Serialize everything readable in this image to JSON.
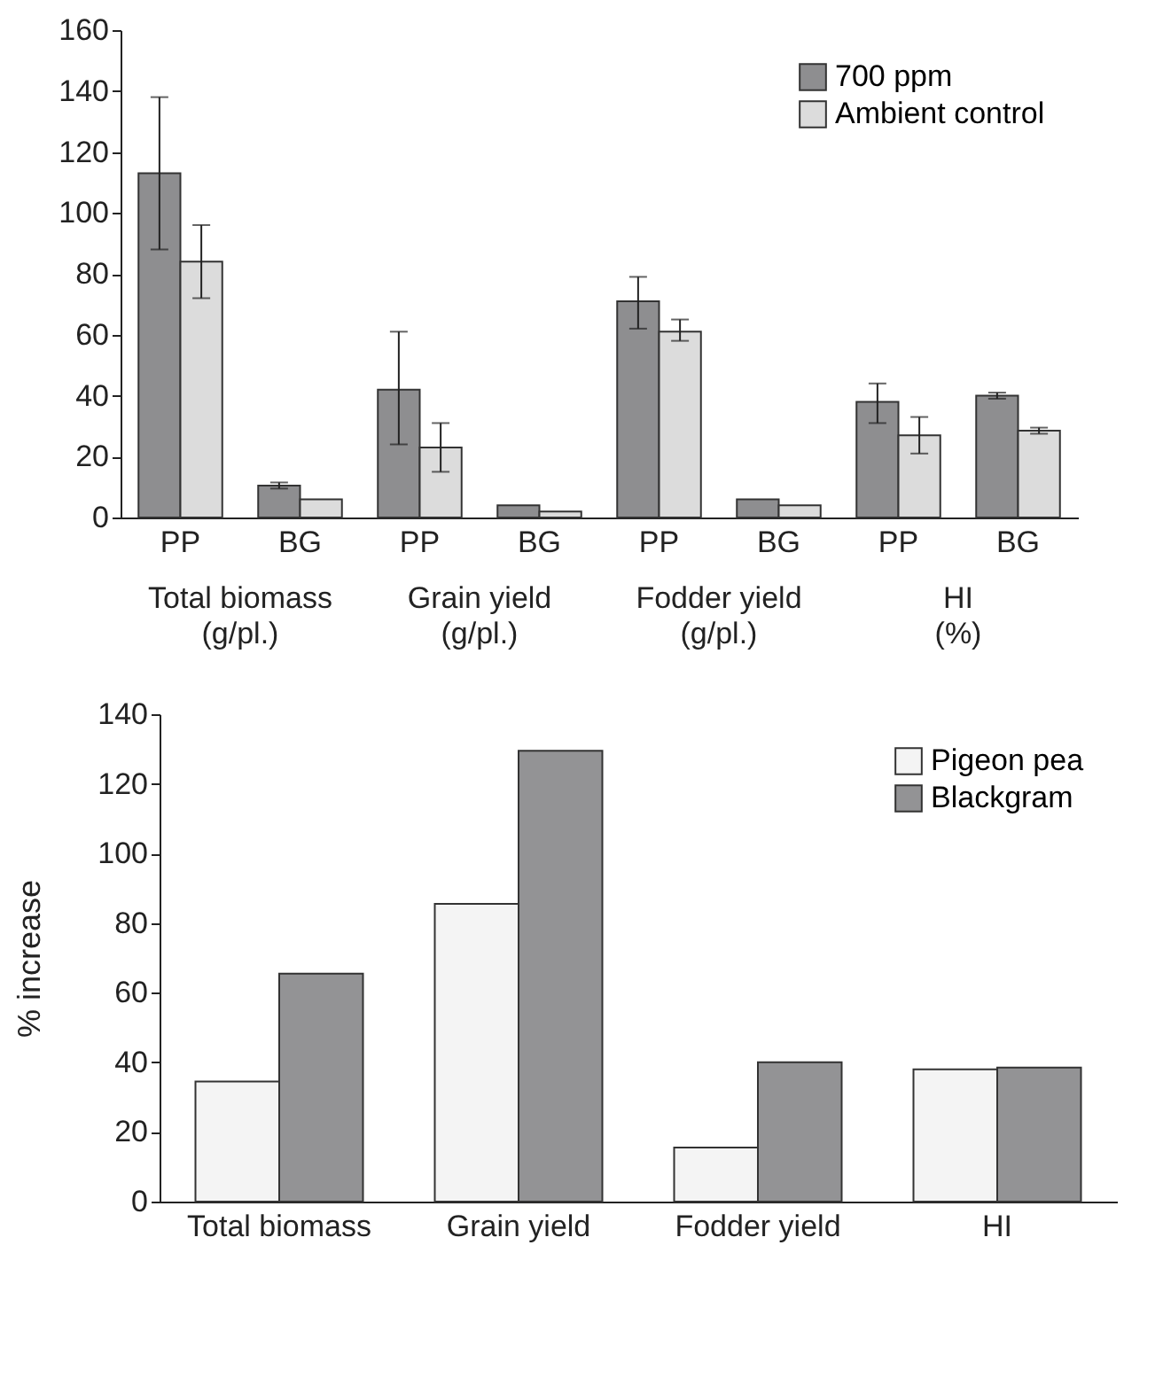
{
  "chart_data": [
    {
      "type": "bar",
      "categories": [
        "PP",
        "BG",
        "PP",
        "BG",
        "PP",
        "BG",
        "PP",
        "BG"
      ],
      "series": [
        {
          "name": "700 ppm",
          "color": "#8e8e90",
          "values": [
            113,
            10.5,
            42,
            4,
            71,
            6,
            38,
            40
          ],
          "errors": [
            [
              88,
              138
            ],
            [
              9.5,
              11.5
            ],
            [
              24,
              61
            ],
            null,
            [
              62,
              79
            ],
            null,
            [
              31,
              44
            ],
            [
              39,
              41
            ]
          ]
        },
        {
          "name": "Ambient control",
          "color": "#dcdcdc",
          "values": [
            84,
            6,
            23,
            2,
            61,
            4,
            27,
            28.5
          ],
          "errors": [
            [
              72,
              96
            ],
            null,
            [
              15,
              31
            ],
            null,
            [
              58,
              65
            ],
            null,
            [
              21,
              33
            ],
            [
              27.5,
              29.5
            ]
          ]
        }
      ],
      "annotations": [
        "Total biomass\n(g/pl.)",
        "Grain yield\n(g/pl.)",
        "Fodder yield\n(g/pl.)",
        "HI\n(%)"
      ],
      "ylim": [
        0,
        160
      ],
      "yticks": [
        0,
        20,
        40,
        60,
        80,
        100,
        120,
        140,
        160
      ],
      "legend": "top right"
    },
    {
      "type": "bar",
      "categories": [
        "Total biomass",
        "Grain yield",
        "Fodder yield",
        "HI"
      ],
      "ylabel": "% increase",
      "series": [
        {
          "name": "Pigeon pea",
          "color": "#f4f4f4",
          "values": [
            34.5,
            85.5,
            15.5,
            38
          ]
        },
        {
          "name": "Blackgram",
          "color": "#939395",
          "values": [
            65.5,
            129.5,
            40,
            38.5
          ]
        }
      ],
      "ylim": [
        0,
        140
      ],
      "yticks": [
        0,
        20,
        40,
        60,
        80,
        100,
        120,
        140
      ],
      "legend": "top right"
    }
  ]
}
